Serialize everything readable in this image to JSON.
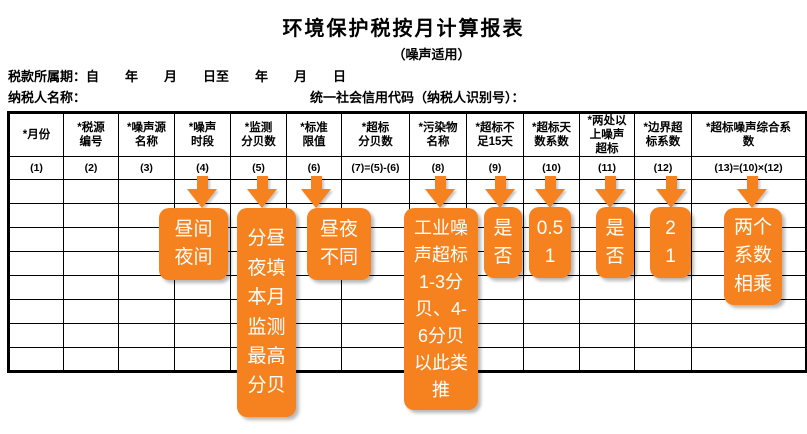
{
  "page": {
    "title": "环境保护税按月计算报表",
    "subtitle": "（噪声适用）"
  },
  "meta": {
    "period_label": "税款所属期：自　　年　　月　　日至　　年　　月　　日",
    "taxpayer_label": "纳税人名称：",
    "credit_code_label": "统一社会信用代码（纳税人识别号）："
  },
  "table": {
    "columns": [
      {
        "label": "*月份",
        "num": "(1)"
      },
      {
        "label": "*税源\n编号",
        "num": "(2)"
      },
      {
        "label": "*噪声源\n名称",
        "num": "(3)"
      },
      {
        "label": "*噪声\n时段",
        "num": "(4)"
      },
      {
        "label": "*监测\n分贝数",
        "num": "(5)"
      },
      {
        "label": "*标准\n限值",
        "num": "(6)"
      },
      {
        "label": "*超标\n分贝数",
        "num": "(7)=(5)-(6)"
      },
      {
        "label": "*污染物\n名称",
        "num": "(8)"
      },
      {
        "label": "*超标不\n足15天",
        "num": "(9)"
      },
      {
        "label": "*超标天\n数系数",
        "num": "(10)"
      },
      {
        "label": "*两处以\n上噪声\n超标",
        "num": "(11)"
      },
      {
        "label": "*边界超\n标系数",
        "num": "(12)"
      },
      {
        "label": "*超标噪声综合系\n数",
        "num": "(13)=(10)×(12)"
      }
    ],
    "empty_row_count": 8,
    "column_count": 13
  },
  "callouts": [
    {
      "target_column": "(4)",
      "text": "昼间\n夜间"
    },
    {
      "target_column": "(5)",
      "text": "分昼\n夜填\n本月\n监测\n最高\n分贝"
    },
    {
      "target_column": "(6)",
      "text": "昼夜\n不同"
    },
    {
      "target_column": "(8)",
      "text": "工业噪\n声超标\n1-3分\n贝、4-\n6分贝\n以此类\n推"
    },
    {
      "target_column": "(9)",
      "text": "是\n否"
    },
    {
      "target_column": "(10)",
      "text": "0.5\n1"
    },
    {
      "target_column": "(11)",
      "text": "是\n否"
    },
    {
      "target_column": "(12)",
      "text": "2\n1"
    },
    {
      "target_column": "(13)",
      "text": "两个\n系数\n相乘"
    }
  ],
  "icons": {
    "down_arrow": "down-arrow"
  },
  "colors": {
    "accent_orange": "#F5821F",
    "grid_line": "#7a7a7a",
    "border": "#000000"
  }
}
